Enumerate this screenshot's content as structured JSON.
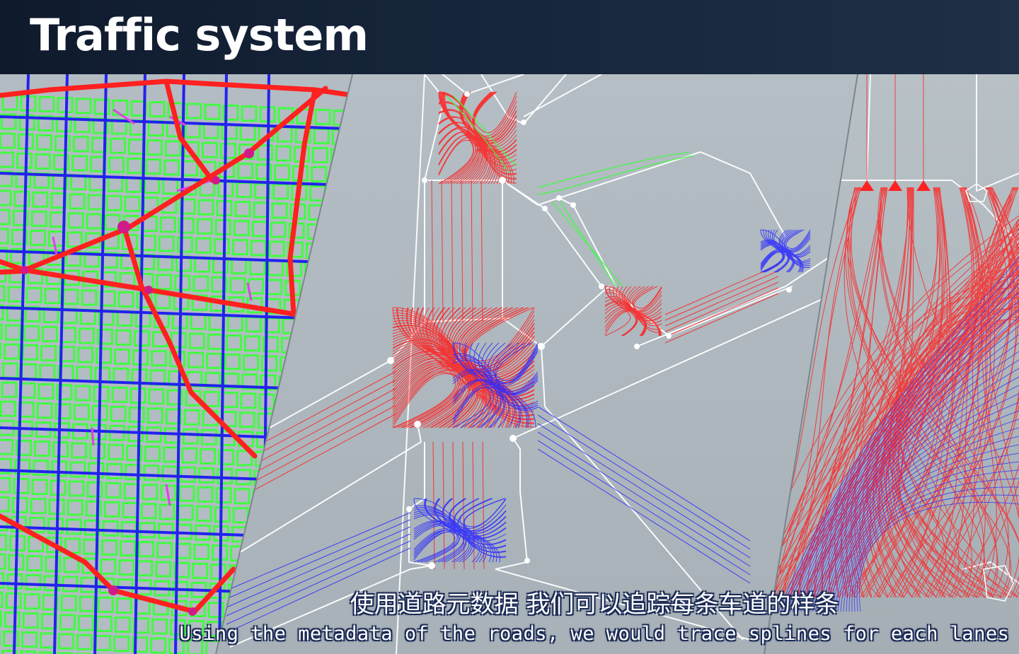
{
  "header": {
    "title": "Traffic system"
  },
  "panels": [
    {
      "name": "city-road-network"
    },
    {
      "name": "intersection-lane-splines"
    },
    {
      "name": "intersection-closeup"
    }
  ],
  "subtitles": {
    "chinese": "使用道路元数据 我们可以追踪每条车道的样条",
    "english": "Using the metadata of the roads, we would trace splines for each lanes"
  },
  "colors": {
    "lane_red": "#ff2020",
    "lane_blue": "#2a2aff",
    "lane_green": "#3bff3b",
    "lane_magenta": "#e040e8",
    "road_outline": "#ffffff"
  }
}
